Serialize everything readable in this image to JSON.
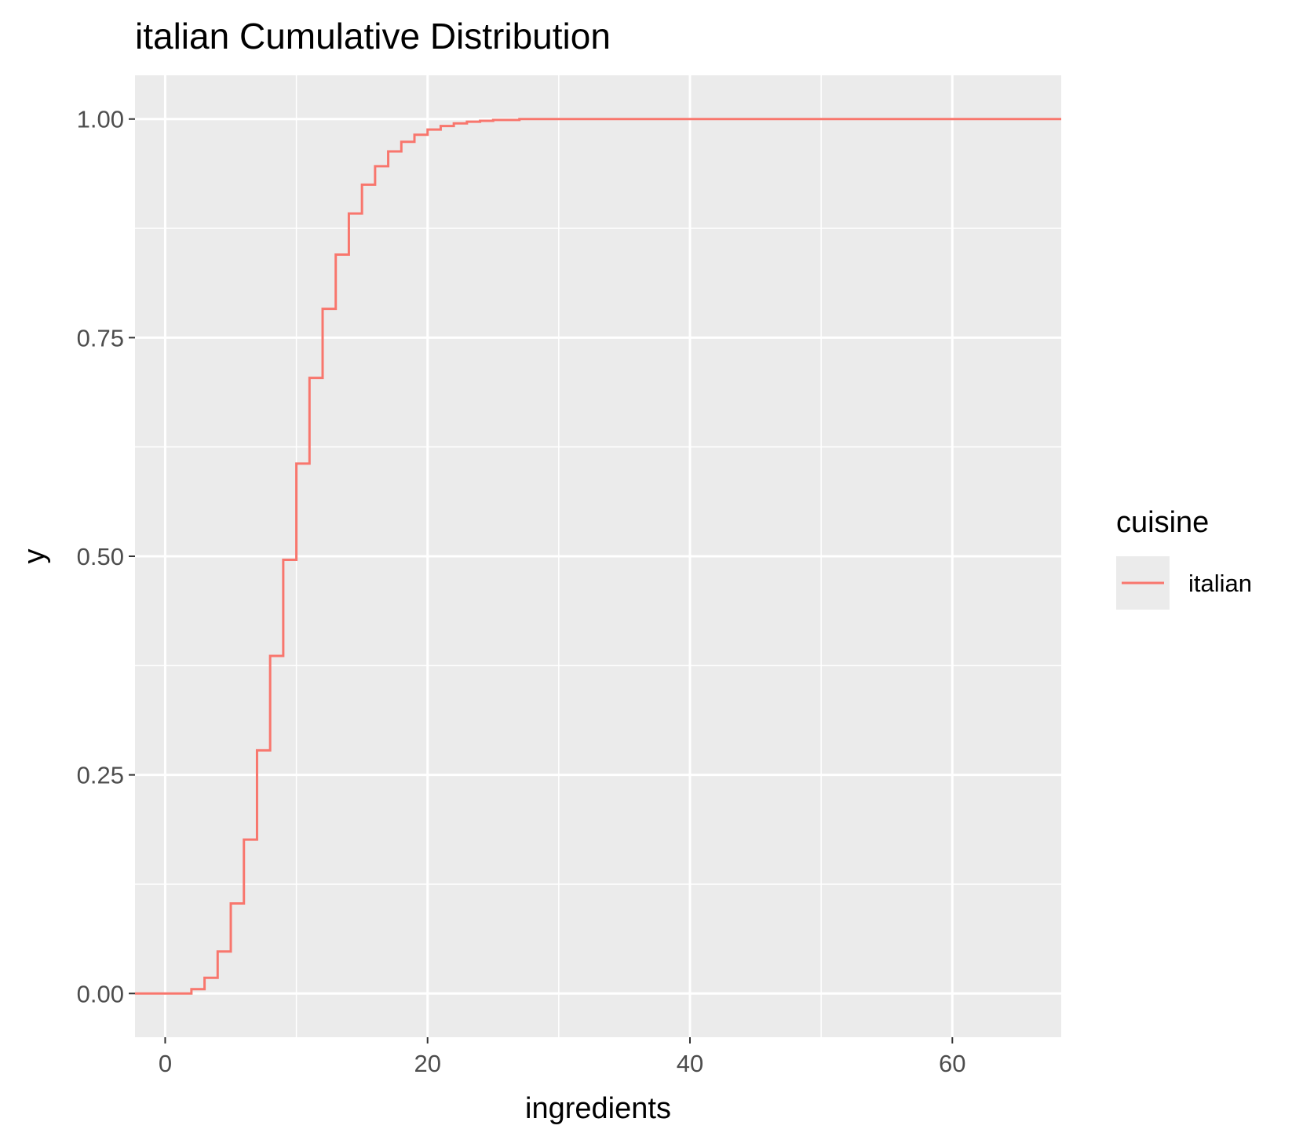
{
  "chart_data": {
    "type": "line",
    "step": true,
    "title": "italian Cumulative Distribution",
    "xlabel": "ingredients",
    "ylabel": "y",
    "xlim": [
      -2.3,
      68.3
    ],
    "ylim": [
      -0.05,
      1.05
    ],
    "x_ticks": [
      0,
      20,
      40,
      60
    ],
    "x_tick_labels": [
      "0",
      "20",
      "40",
      "60"
    ],
    "y_ticks": [
      0,
      0.25,
      0.5,
      0.75,
      1.0
    ],
    "y_tick_labels": [
      "0.00",
      "0.25",
      "0.50",
      "0.75",
      "1.00"
    ],
    "grid": true,
    "legend": {
      "title": "cuisine",
      "position": "right"
    },
    "series": [
      {
        "name": "italian",
        "color": "#F8766D",
        "x": [
          -2.3,
          2,
          3,
          4,
          5,
          6,
          7,
          8,
          9,
          10,
          11,
          12,
          13,
          14,
          15,
          16,
          17,
          18,
          19,
          20,
          21,
          22,
          23,
          24,
          25,
          27,
          68.3
        ],
        "y": [
          0.0,
          0.005,
          0.018,
          0.048,
          0.103,
          0.176,
          0.278,
          0.386,
          0.496,
          0.606,
          0.704,
          0.783,
          0.845,
          0.892,
          0.925,
          0.946,
          0.963,
          0.974,
          0.982,
          0.988,
          0.992,
          0.995,
          0.997,
          0.998,
          0.999,
          1.0,
          1.0
        ]
      }
    ]
  }
}
